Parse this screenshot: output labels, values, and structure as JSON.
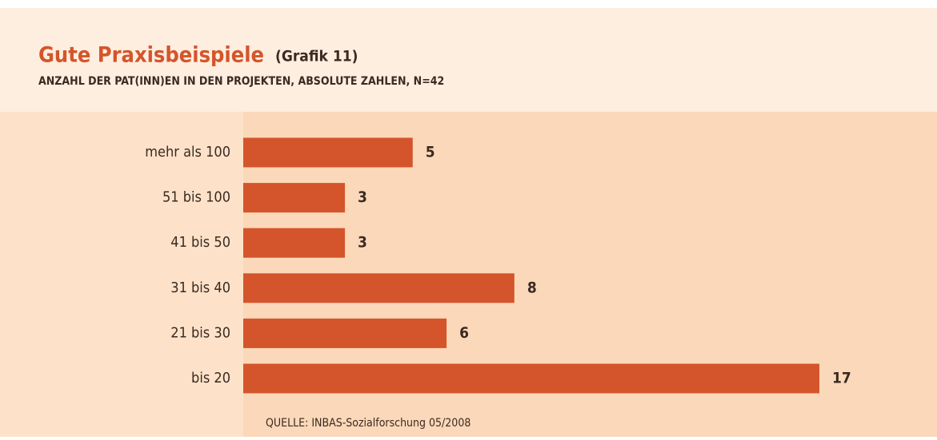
{
  "chart_data": {
    "type": "bar",
    "orientation": "horizontal",
    "title": "Gute Praxisbeispiele",
    "title_note": "(Grafik 11)",
    "subtitle": "ANZAHL DER PAT(INN)EN IN DEN PROJEKTEN, ABSOLUTE ZAHLEN, N=42",
    "categories": [
      "mehr als 100",
      "51 bis 100",
      "41 bis 50",
      "31 bis 40",
      "21 bis 30",
      "bis 20"
    ],
    "values": [
      5,
      3,
      3,
      8,
      6,
      17
    ],
    "color": "#d4552b",
    "source": "QUELLE: INBAS-Sozialforschung 05/2008"
  }
}
